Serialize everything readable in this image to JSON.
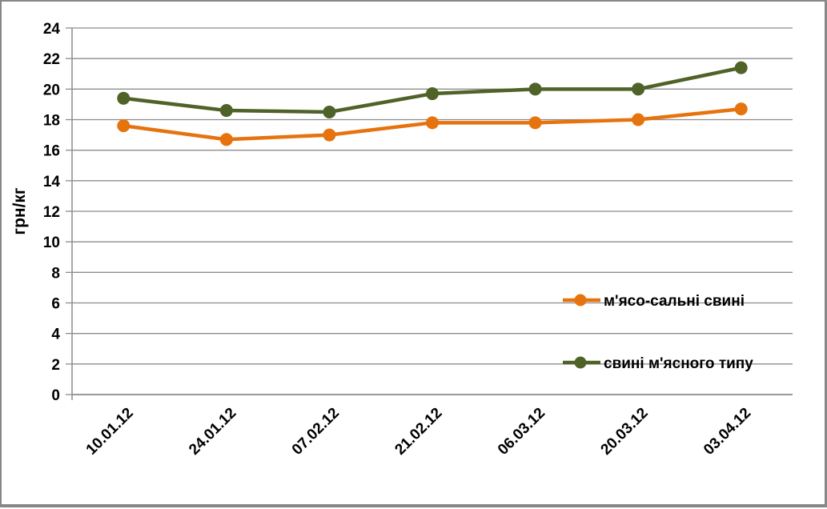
{
  "chart_data": {
    "type": "line",
    "title": "",
    "xlabel": "",
    "ylabel": "грн/кг",
    "categories": [
      "10.01.12",
      "24.01.12",
      "07.02.12",
      "21.02.12",
      "06.03.12",
      "20.03.12",
      "03.04.12"
    ],
    "series": [
      {
        "name": "м'ясо-сальні свині",
        "color": "#E6730D",
        "marker": "circle",
        "values": [
          17.6,
          16.7,
          17.0,
          17.8,
          17.8,
          18.0,
          18.7
        ]
      },
      {
        "name": "свині м'ясного типу",
        "color": "#4F6228",
        "marker": "circle",
        "values": [
          19.4,
          18.6,
          18.5,
          19.7,
          20.0,
          20.0,
          21.4
        ]
      }
    ],
    "ylim": [
      0,
      24
    ],
    "y_ticks": [
      0,
      2,
      4,
      6,
      8,
      10,
      12,
      14,
      16,
      18,
      20,
      22,
      24
    ],
    "grid": "horizontal",
    "grid_color": "#8C8C8C",
    "axis_color": "#8C8C8C",
    "text_color": "#000000",
    "legend_position": "inside-right"
  }
}
